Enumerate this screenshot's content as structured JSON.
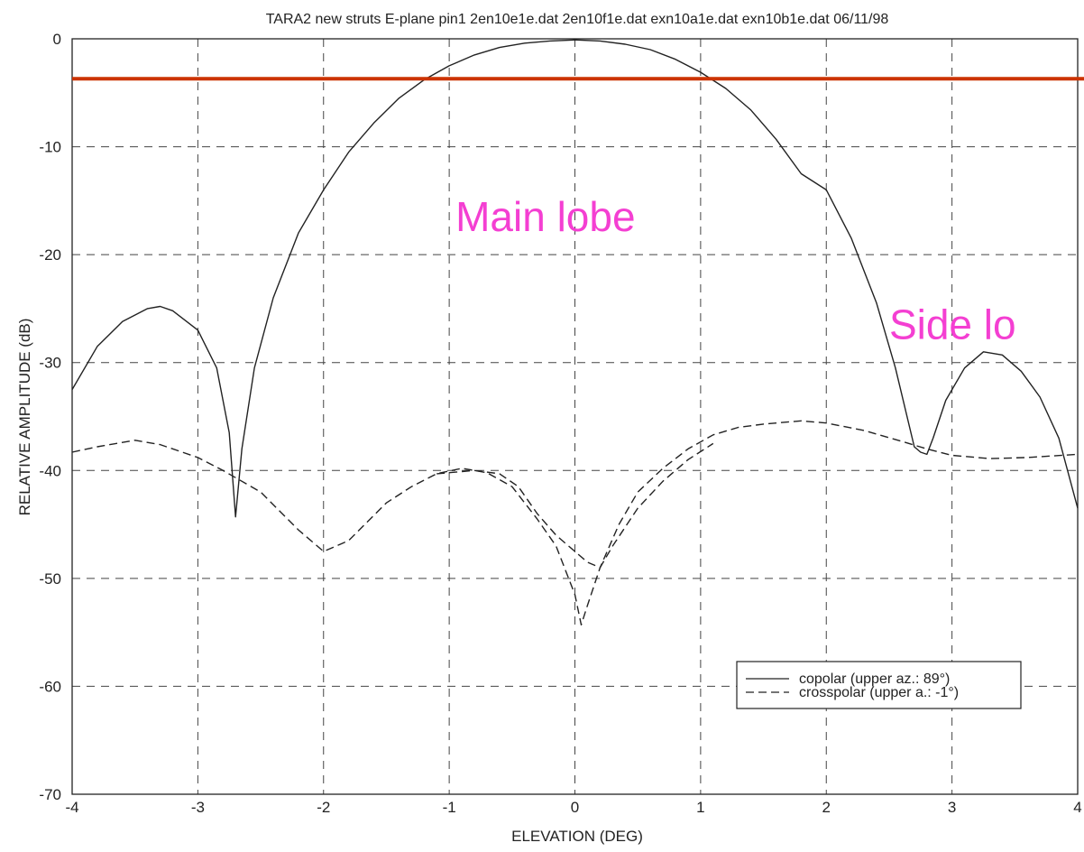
{
  "chart_data": {
    "type": "line",
    "title": "TARA2 new struts E-plane pin1 2en10e1e.dat 2en10f1e.dat exn10a1e.dat exn10b1e.dat 06/11/98",
    "xlabel": "ELEVATION (DEG)",
    "ylabel": "RELATIVE AMPLITUDE (dB)",
    "xlim": [
      -4,
      4
    ],
    "ylim": [
      -70,
      0
    ],
    "xticks": [
      "-4",
      "-3",
      "-2",
      "-1",
      "0",
      "1",
      "2",
      "3",
      "4"
    ],
    "yticks": [
      "0",
      "-10",
      "-20",
      "-30",
      "-40",
      "-50",
      "-60",
      "-70"
    ],
    "grid": true,
    "legend_position": "bottom-right",
    "reference_line": {
      "y": -3.7,
      "color": "#cc3300"
    },
    "annotations": [
      {
        "text": "Main lobe",
        "x": -0.95,
        "y": -17.8,
        "color": "#f43fd2"
      },
      {
        "text": "Side lo",
        "x": 2.5,
        "y": -27.8,
        "color": "#f43fd2"
      }
    ],
    "series": [
      {
        "name": "copolar (upper az.: 89°)",
        "style": "solid",
        "x": [
          -4.0,
          -3.8,
          -3.6,
          -3.4,
          -3.3,
          -3.2,
          -3.0,
          -2.85,
          -2.75,
          -2.7,
          -2.65,
          -2.55,
          -2.4,
          -2.2,
          -2.0,
          -1.8,
          -1.6,
          -1.4,
          -1.2,
          -1.0,
          -0.8,
          -0.6,
          -0.4,
          -0.2,
          0.0,
          0.2,
          0.4,
          0.6,
          0.8,
          1.0,
          1.2,
          1.4,
          1.6,
          1.8,
          2.0,
          2.2,
          2.4,
          2.55,
          2.7,
          2.75,
          2.8,
          2.85,
          2.95,
          3.1,
          3.25,
          3.4,
          3.55,
          3.7,
          3.85,
          4.0
        ],
        "y": [
          -32.5,
          -28.5,
          -26.2,
          -25.0,
          -24.8,
          -25.2,
          -27.0,
          -30.5,
          -36.5,
          -44.3,
          -38.0,
          -30.5,
          -24.0,
          -18.0,
          -14.0,
          -10.5,
          -7.8,
          -5.5,
          -3.8,
          -2.5,
          -1.5,
          -0.8,
          -0.4,
          -0.2,
          -0.1,
          -0.2,
          -0.5,
          -1.0,
          -1.9,
          -3.1,
          -4.6,
          -6.6,
          -9.3,
          -12.5,
          -14.0,
          -18.5,
          -24.5,
          -30.5,
          -37.8,
          -38.3,
          -38.5,
          -37.0,
          -33.5,
          -30.5,
          -29.0,
          -29.3,
          -30.8,
          -33.2,
          -37.0,
          -43.5
        ]
      },
      {
        "name": "crosspolar (upper a.: -1°)",
        "style": "dashed",
        "x": [
          -4.0,
          -3.8,
          -3.5,
          -3.3,
          -3.0,
          -2.8,
          -2.5,
          -2.2,
          -2.0,
          -1.8,
          -1.5,
          -1.3,
          -1.1,
          -0.9,
          -0.7,
          -0.5,
          -0.3,
          -0.15,
          0.0,
          0.05,
          0.1,
          0.2,
          0.35,
          0.5,
          0.7,
          0.9,
          1.1,
          1.3,
          1.5,
          1.8,
          2.0,
          2.3,
          2.6,
          2.8,
          3.0,
          3.3,
          3.6,
          4.0
        ],
        "y": [
          -38.3,
          -37.8,
          -37.2,
          -37.6,
          -38.8,
          -40.0,
          -42.0,
          -45.5,
          -47.5,
          -46.5,
          -43.0,
          -41.5,
          -40.3,
          -39.8,
          -40.2,
          -41.5,
          -44.5,
          -47.0,
          -51.5,
          -54.3,
          -52.5,
          -49.0,
          -45.0,
          -42.0,
          -39.8,
          -38.0,
          -36.7,
          -36.0,
          -35.7,
          -35.4,
          -35.6,
          -36.3,
          -37.3,
          -38.0,
          -38.6,
          -38.9,
          -38.8,
          -38.5
        ]
      },
      {
        "name": "",
        "style": "dashed",
        "x": [
          -1.1,
          -0.8,
          -0.6,
          -0.45,
          -0.3,
          -0.15,
          0.0,
          0.1,
          0.2,
          0.3,
          0.5,
          0.7,
          0.9,
          1.1
        ],
        "y": [
          -40.3,
          -40.0,
          -40.3,
          -41.5,
          -44.0,
          -46.0,
          -47.5,
          -48.5,
          -49.0,
          -47.0,
          -43.5,
          -41.0,
          -39.0,
          -37.5
        ]
      }
    ]
  }
}
